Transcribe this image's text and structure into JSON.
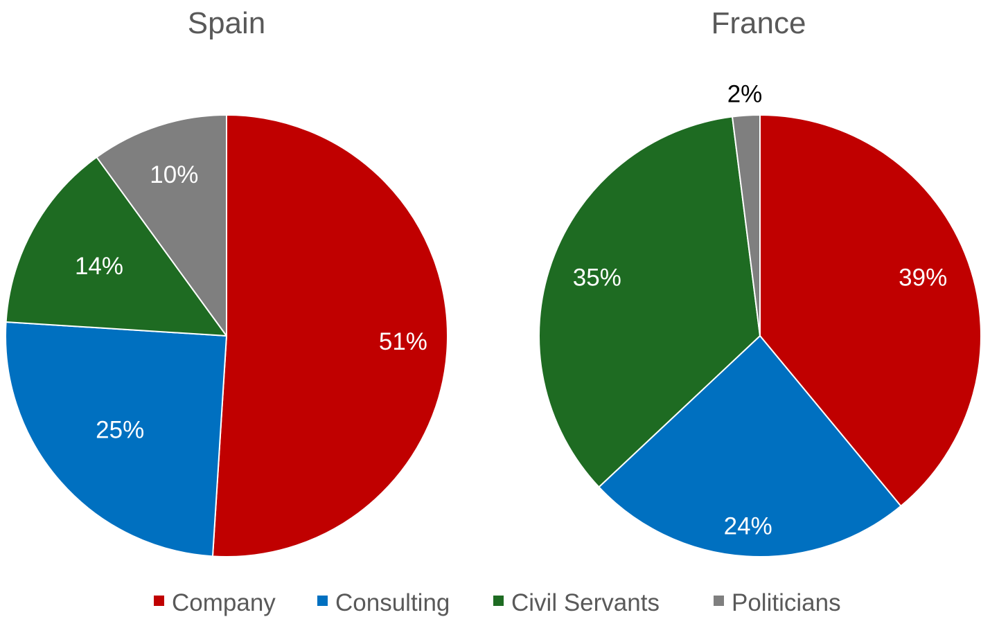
{
  "chart_data": [
    {
      "type": "pie",
      "title": "Spain",
      "categories": [
        "Company",
        "Consulting",
        "Civil Servants",
        "Politicians"
      ],
      "values": [
        51,
        25,
        14,
        10
      ],
      "labels": [
        "51%",
        "25%",
        "14%",
        "10%"
      ],
      "start": "12 o'clock",
      "direction": "clockwise"
    },
    {
      "type": "pie",
      "title": "France",
      "categories": [
        "Company",
        "Consulting",
        "Civil Servants",
        "Politicians"
      ],
      "values": [
        39,
        24,
        35,
        2
      ],
      "labels": [
        "39%",
        "24%",
        "35%",
        "2%"
      ],
      "start": "12 o'clock",
      "direction": "clockwise"
    }
  ],
  "legend": {
    "placement": "bottom",
    "items": [
      {
        "label": "Company",
        "color": "#C00000"
      },
      {
        "label": "Consulting",
        "color": "#0070C0"
      },
      {
        "label": "Civil Servants",
        "color": "#1E6B22"
      },
      {
        "label": "Politicians",
        "color": "#7F7F7F"
      }
    ]
  },
  "colors": {
    "slice_border": "#FFFFFF",
    "inside_label": "#FFFFFF",
    "outside_label": "#000000",
    "title": "#595959"
  }
}
